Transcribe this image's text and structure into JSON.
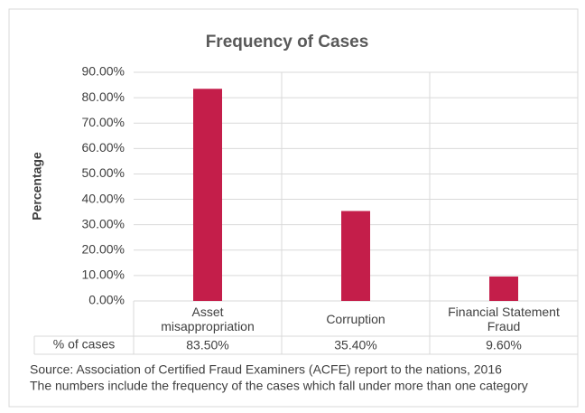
{
  "chart_data": {
    "type": "bar",
    "title": "Frequency of Cases",
    "y_label": "Percentage",
    "categories": [
      "Asset misappropriation",
      "Corruption",
      "Financial Statement Fraud"
    ],
    "values": [
      83.5,
      35.4,
      9.6
    ],
    "value_labels": [
      "83.50%",
      "35.40%",
      "9.60%"
    ],
    "table_row_label": "% of cases",
    "color": "#c41e4a",
    "ylim": [
      0,
      90
    ],
    "yticks": [
      {
        "value": 0,
        "label": "0.00%"
      },
      {
        "value": 10,
        "label": "10.00%"
      },
      {
        "value": 20,
        "label": "20.00%"
      },
      {
        "value": 30,
        "label": "30.00%"
      },
      {
        "value": 40,
        "label": "40.00%"
      },
      {
        "value": 50,
        "label": "50.00%"
      },
      {
        "value": 60,
        "label": "60.00%"
      },
      {
        "value": 70,
        "label": "70.00%"
      },
      {
        "value": 80,
        "label": "80.00%"
      },
      {
        "value": 90,
        "label": "90.00%"
      }
    ],
    "notes": [
      "Source: Association of Certified Fraud Examiners (ACFE) report to the nations, 2016",
      "The numbers include the frequency of the cases which fall under more than one category"
    ]
  }
}
